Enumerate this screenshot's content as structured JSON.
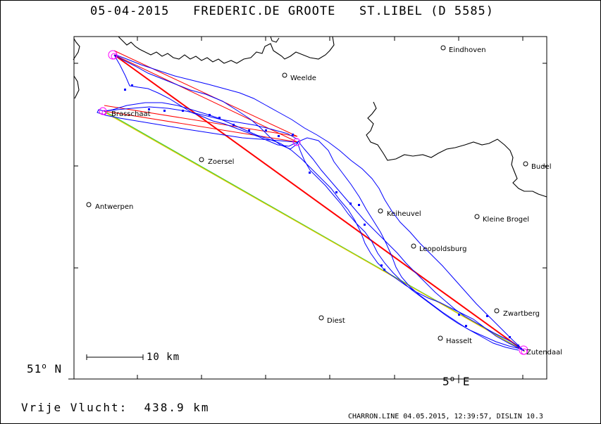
{
  "header": {
    "date": "05-04-2015",
    "pilot": "FREDERIC.DE GROOTE",
    "club": "ST.LIBEL (D 5585)"
  },
  "axes": {
    "lat_value": "51",
    "lat_hemisphere": "N",
    "lon_value": "5",
    "lon_hemisphere": "E",
    "degree_symbol": "o"
  },
  "scale_bar": {
    "label": "10 km"
  },
  "footer": {
    "distance_label": "Vrije Vlucht:",
    "distance_value": "438.9 km",
    "credit": "CHARRON.LINE 04.05.2015, 12:39:57, DISLIN 10.3"
  },
  "towns": [
    {
      "id": "eindhoven",
      "name": "Eindhoven"
    },
    {
      "id": "weelde",
      "name": "Weelde"
    },
    {
      "id": "brasschaat",
      "name": "Brasschaat"
    },
    {
      "id": "zoersel",
      "name": "Zoersel"
    },
    {
      "id": "budel",
      "name": "Budel"
    },
    {
      "id": "antwerpen",
      "name": "Antwerpen"
    },
    {
      "id": "keiheuvel",
      "name": "Keiheuvel"
    },
    {
      "id": "kleine-brogel",
      "name": "Kleine Brogel"
    },
    {
      "id": "leopoldsburg",
      "name": "Leopoldsburg"
    },
    {
      "id": "zwartberg",
      "name": "Zwartberg"
    },
    {
      "id": "diest",
      "name": "Diest"
    },
    {
      "id": "hasselt",
      "name": "Hasselt"
    },
    {
      "id": "zutendaal",
      "name": "Zutendaal"
    }
  ],
  "colors": {
    "frame": "#000000",
    "border_line": "#000000",
    "flight_track": "#0000ff",
    "task_leg": "#ff0000",
    "declared_leg_green": "#33cc33",
    "declared_leg_yellow": "#e6c800",
    "turnpoint": "#ff00ff",
    "town_marker": "#000000"
  }
}
